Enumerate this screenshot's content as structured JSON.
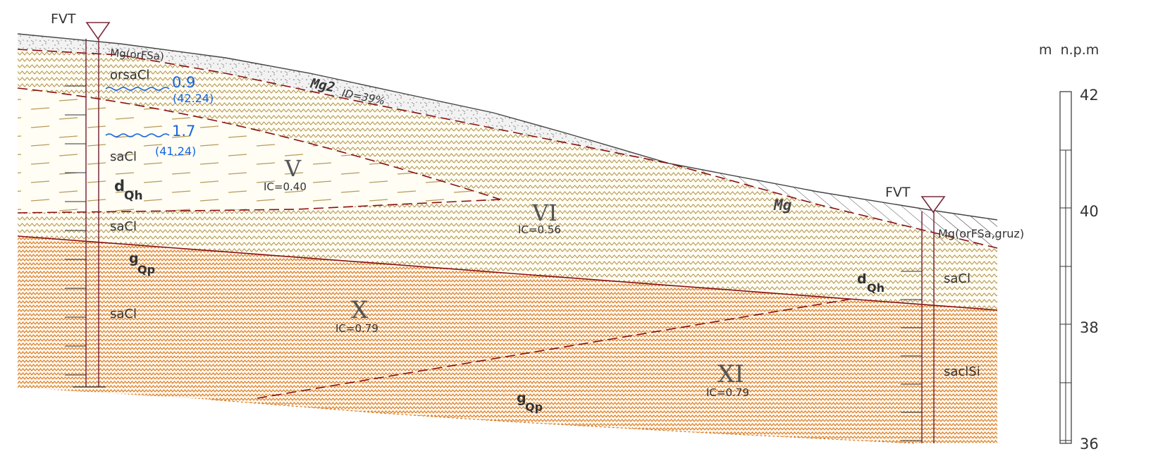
{
  "colors": {
    "fill_soil": "#fdfcf2",
    "hatch_tan": "#b79a5a",
    "hatch_orange": "#d97a1e",
    "fill_gravel": "#eeeeee",
    "boundary_red": "#8b1010",
    "borehole": "#7a2a3a",
    "water_blue": "#1565e0",
    "line_dark": "#333333",
    "text": "#333333"
  },
  "scale": {
    "unit_label": "m  n.p.m",
    "ticks": [
      "42",
      "40",
      "38",
      "36"
    ]
  },
  "boreholes": [
    {
      "label": "FVT"
    },
    {
      "label": "FVT"
    }
  ],
  "water_levels": [
    {
      "depth": "0.9",
      "elev": "(42.24)"
    },
    {
      "depth": "1.7",
      "elev": "(41.24)"
    }
  ],
  "layer_codes": {
    "mg_orfsa": "Mg(orFSa)",
    "orsacl": "orsaCl",
    "sacl_1": "saCl",
    "sacl_2": "saCl",
    "sacl_3": "saCl",
    "mg_orfsa_gruz": "Mg(orFSa,gruz)",
    "sacl_right": "saCl",
    "saclsi": "saclSi"
  },
  "zones": [
    {
      "roman": "V",
      "ic": "IC=0.40"
    },
    {
      "roman": "VI",
      "ic": "IC=0.56"
    },
    {
      "roman": "X",
      "ic": "IC=0.79"
    },
    {
      "roman": "XI",
      "ic": "IC=0.79"
    }
  ],
  "genesis": [
    {
      "main": "d",
      "sub": "Qh"
    },
    {
      "main": "g",
      "sub": "Qp"
    },
    {
      "main": "d",
      "sub": "Qh"
    },
    {
      "main": "g",
      "sub": "Qp"
    }
  ],
  "fill_labels": {
    "mg2_code": "Mg2",
    "mg2_id": "ID=39%",
    "mg": "Mg"
  }
}
